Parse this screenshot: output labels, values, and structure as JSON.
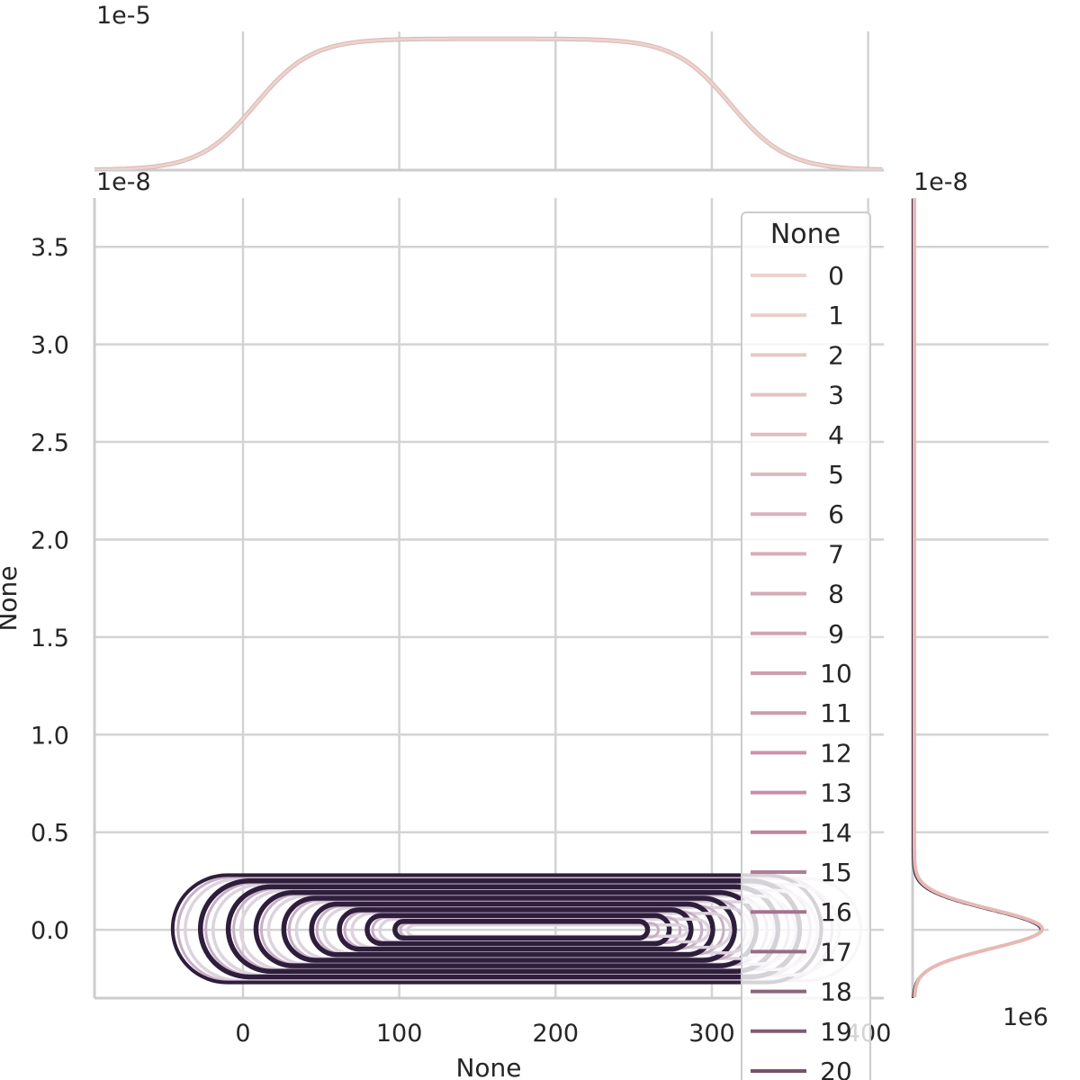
{
  "chart_data": {
    "type": "kde-joint",
    "xlabel": "None",
    "ylabel": "None",
    "x_ticks": [
      "0",
      "100",
      "200",
      "300",
      "400"
    ],
    "x_tick_values": [
      0,
      100,
      200,
      300,
      400
    ],
    "y_ticks": [
      "0.0",
      "0.5",
      "1.0",
      "1.5",
      "2.0",
      "2.5",
      "3.0",
      "3.5"
    ],
    "y_tick_values": [
      0.0,
      0.5,
      1.0,
      1.5,
      2.0,
      2.5,
      3.0,
      3.5
    ],
    "y_offset_label": "1e-8",
    "top_marginal": {
      "offset_label": "1e-5",
      "plateau_x_range": [
        50,
        270
      ]
    },
    "right_marginal": {
      "offset_label": "1e-8",
      "x_offset_label": "1e6",
      "peak_y": 0.0
    },
    "xlim": [
      -95,
      410
    ],
    "ylim": [
      -0.35,
      3.75
    ],
    "grid": true,
    "legend": {
      "title": "None",
      "placement": "top-right",
      "entries": [
        "0",
        "1",
        "2",
        "3",
        "4",
        "5",
        "6",
        "7",
        "8",
        "9",
        "10",
        "11",
        "12",
        "13",
        "14",
        "15",
        "16",
        "17",
        "18",
        "19",
        "20"
      ]
    },
    "contours": {
      "center_y": 0.0,
      "outer_x_range": [
        -45,
        370
      ],
      "outer_y_range": [
        -0.27,
        0.28
      ]
    },
    "colors": {
      "palette_start": "#ecd3cc",
      "palette_mid": "#c98ea7",
      "palette_dark": "#2e1e3c",
      "grid": "#d3d3d3",
      "axis": "#cccccc"
    }
  }
}
